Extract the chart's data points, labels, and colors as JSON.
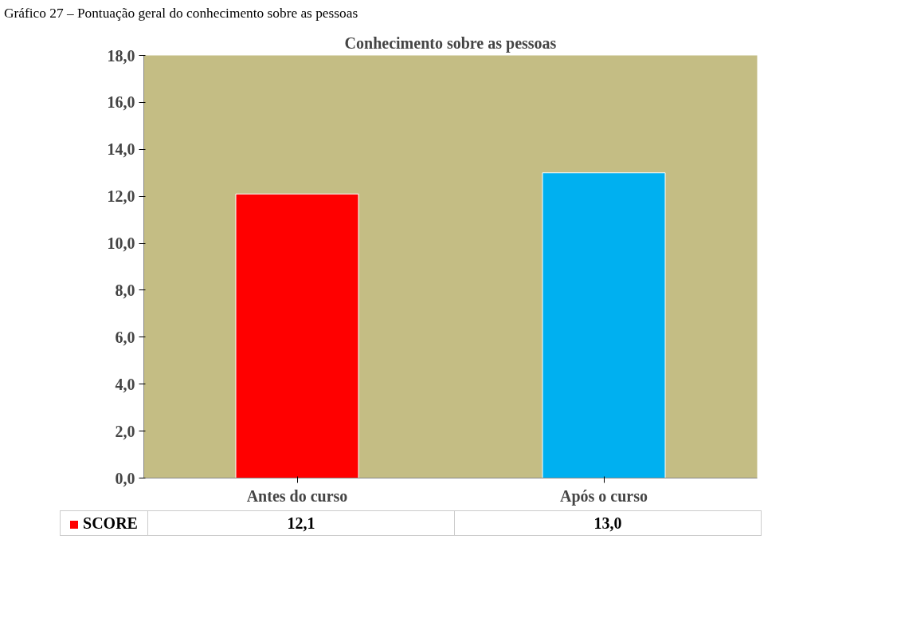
{
  "chart_data": {
    "type": "bar",
    "title": "Conhecimento sobre as pessoas",
    "annotations": [
      "Gráfico 27 – Pontuação geral do conhecimento sobre as pessoas"
    ],
    "categories": [
      "Antes do curso",
      "Após o curso"
    ],
    "series": [
      {
        "name": "SCORE",
        "colors": [
          "#ff0000",
          "#00b0f0"
        ],
        "values": [
          12.1,
          13.0
        ],
        "value_labels": [
          "12,1",
          "13,0"
        ]
      }
    ],
    "ylim": [
      0,
      18
    ],
    "yticks": [
      {
        "value": 0,
        "label": "0,0"
      },
      {
        "value": 2,
        "label": "2,0"
      },
      {
        "value": 4,
        "label": "4,0"
      },
      {
        "value": 6,
        "label": "6,0"
      },
      {
        "value": 8,
        "label": "8,0"
      },
      {
        "value": 10,
        "label": "10,0"
      },
      {
        "value": 12,
        "label": "12,0"
      },
      {
        "value": 14,
        "label": "14,0"
      },
      {
        "value": 16,
        "label": "16,0"
      },
      {
        "value": 18,
        "label": "18,0"
      }
    ],
    "legend": "bottom"
  }
}
